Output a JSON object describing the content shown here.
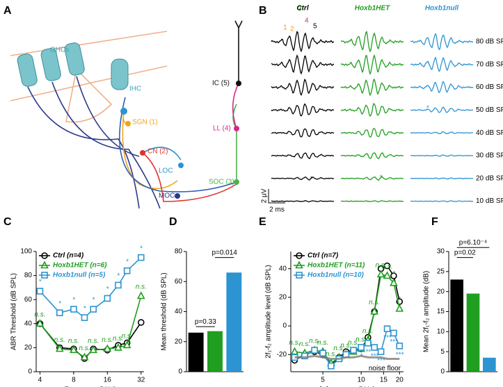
{
  "panel_a": {
    "letter": "A",
    "labels": [
      "OHCs",
      "IHC",
      "SGN (1)",
      "CN (2)",
      "LOC",
      "MOC",
      "SOC (3)",
      "LL (4)",
      "IC (5)"
    ]
  },
  "panel_b": {
    "letter": "B",
    "columns": [
      "Ctrl",
      "Hoxb1HET",
      "Hoxb1null"
    ],
    "peaks": [
      "1",
      "2",
      "3",
      "4",
      "5"
    ],
    "levels": [
      "80 dB SPL",
      "70 dB SPL",
      "60 dB SPL",
      "50 dB SPL",
      "40 dB SPL",
      "30 dB SPL",
      "20 dB SPL",
      "10 dB SPL"
    ],
    "scale_y": "2 µV",
    "scale_x": "2 ms",
    "marks": [
      "*",
      "*",
      "*"
    ]
  },
  "chart_data": [
    {
      "type": "line",
      "letter": "C",
      "ylabel": "ABR Threshold (dB SPL)",
      "xlabel": "Frequency (kHz)",
      "xlog": true,
      "x": [
        4,
        6,
        8,
        10,
        12,
        16,
        20,
        24,
        32
      ],
      "xlim": [
        3.7,
        34
      ],
      "xticks": [
        4,
        8,
        16,
        32
      ],
      "ylim": [
        0,
        100
      ],
      "yticks": [
        0,
        20,
        40,
        60,
        80,
        100
      ],
      "series": [
        {
          "name": "Ctrl (n=4)",
          "color": "#000000",
          "marker": "circle",
          "values": [
            40,
            20,
            19,
            11,
            19,
            18,
            22,
            24,
            41
          ]
        },
        {
          "name": "Hoxb1HET (n=6)",
          "color": "#1f9e1f",
          "marker": "triangle",
          "values": [
            40,
            19,
            18,
            12,
            18,
            19,
            20,
            22,
            63
          ],
          "point_labels": [
            "n.s.",
            "n.s.",
            "n.s.",
            "n.s.",
            "n.s.",
            "n.s.",
            "n.s.",
            "n.s.",
            "n.s."
          ]
        },
        {
          "name": "Hoxb1null (n=5)",
          "color": "#2b94d1",
          "marker": "square",
          "values": [
            67,
            49,
            52,
            45,
            52,
            61,
            72,
            84,
            95
          ],
          "point_labels": [
            "*",
            "*",
            "*",
            "*",
            "*",
            "*",
            "*",
            "*",
            "*"
          ]
        }
      ]
    },
    {
      "type": "bar",
      "letter": "D",
      "ylabel": "Mean threshold (dB SPL)",
      "categories": [
        null,
        null,
        null
      ],
      "values": [
        26,
        27,
        66
      ],
      "colors": [
        "#000000",
        "#1f9e1f",
        "#2b94d1"
      ],
      "ylim": [
        0,
        80
      ],
      "yticks": [
        0,
        20,
        40,
        60,
        80
      ],
      "annotations": [
        "p=0.33",
        "p=0.014"
      ]
    },
    {
      "type": "line",
      "letter": "E",
      "ylabel": "2f₁-f₂ amplitude level (dB SPL)",
      "xlabel": "f₂ frequency (kHz)",
      "xlog": true,
      "x": [
        3,
        3.6,
        4.3,
        5,
        5.8,
        6.7,
        7.6,
        8.7,
        10,
        11.3,
        12.7,
        14.3,
        16,
        18,
        20
      ],
      "xlim": [
        2.8,
        21.5
      ],
      "xticks": [
        5,
        10,
        15,
        20
      ],
      "ylim": [
        -32,
        52
      ],
      "yticks": [
        -20,
        0,
        20,
        40
      ],
      "series": [
        {
          "name": "Ctrl (n=7)",
          "color": "#000000",
          "marker": "circle",
          "values": [
            -24,
            -20,
            -18,
            -20,
            -27,
            -22,
            -18,
            -17,
            -16,
            -8,
            10,
            40,
            42,
            35,
            17
          ]
        },
        {
          "name": "Hoxb1HET (n=11)",
          "color": "#1f9e1f",
          "marker": "triangle",
          "values": [
            -18,
            -19,
            -17,
            -18,
            -26,
            -22,
            -20,
            -18,
            -16,
            -10,
            10,
            36,
            35,
            30,
            12
          ],
          "point_labels": [
            "n.s.",
            "n.s.",
            "n.s.",
            "n.s.",
            "n.s.",
            "n.s.",
            "n.s.",
            "n.s.",
            "n.s.",
            "n.s.",
            "n.s.",
            "n.s.",
            "n.s.",
            "*",
            "*"
          ]
        },
        {
          "name": "Hoxb1null (n=10)",
          "color": "#2b94d1",
          "marker": "square",
          "values": [
            -22,
            -21,
            -17,
            -19,
            -28,
            -23,
            -20,
            -17,
            -15,
            -12,
            -15,
            -18,
            -2,
            -5,
            -14
          ],
          "point_labels": [
            null,
            null,
            null,
            null,
            null,
            null,
            null,
            null,
            "*",
            "**",
            "***",
            "***",
            "***",
            "***",
            "***"
          ]
        },
        {
          "name": "noise floor",
          "color": "#808080",
          "values": [
            -22,
            -22,
            -21,
            -22,
            -23,
            -23,
            -22,
            -22,
            -21,
            -22,
            -22,
            -22,
            -23,
            -23,
            -23
          ]
        }
      ]
    },
    {
      "type": "bar",
      "letter": "F",
      "ylabel": "Mean 2f₁-f₂ amplitude (dB)",
      "categories": [
        null,
        null,
        null
      ],
      "values": [
        23,
        19.5,
        3.5
      ],
      "colors": [
        "#000000",
        "#1f9e1f",
        "#2b94d1"
      ],
      "ylim": [
        0,
        30
      ],
      "yticks": [
        0,
        5,
        10,
        15,
        20,
        25,
        30
      ],
      "annotations": [
        "p=6.10⁻⁴",
        "p=0.02"
      ]
    }
  ]
}
